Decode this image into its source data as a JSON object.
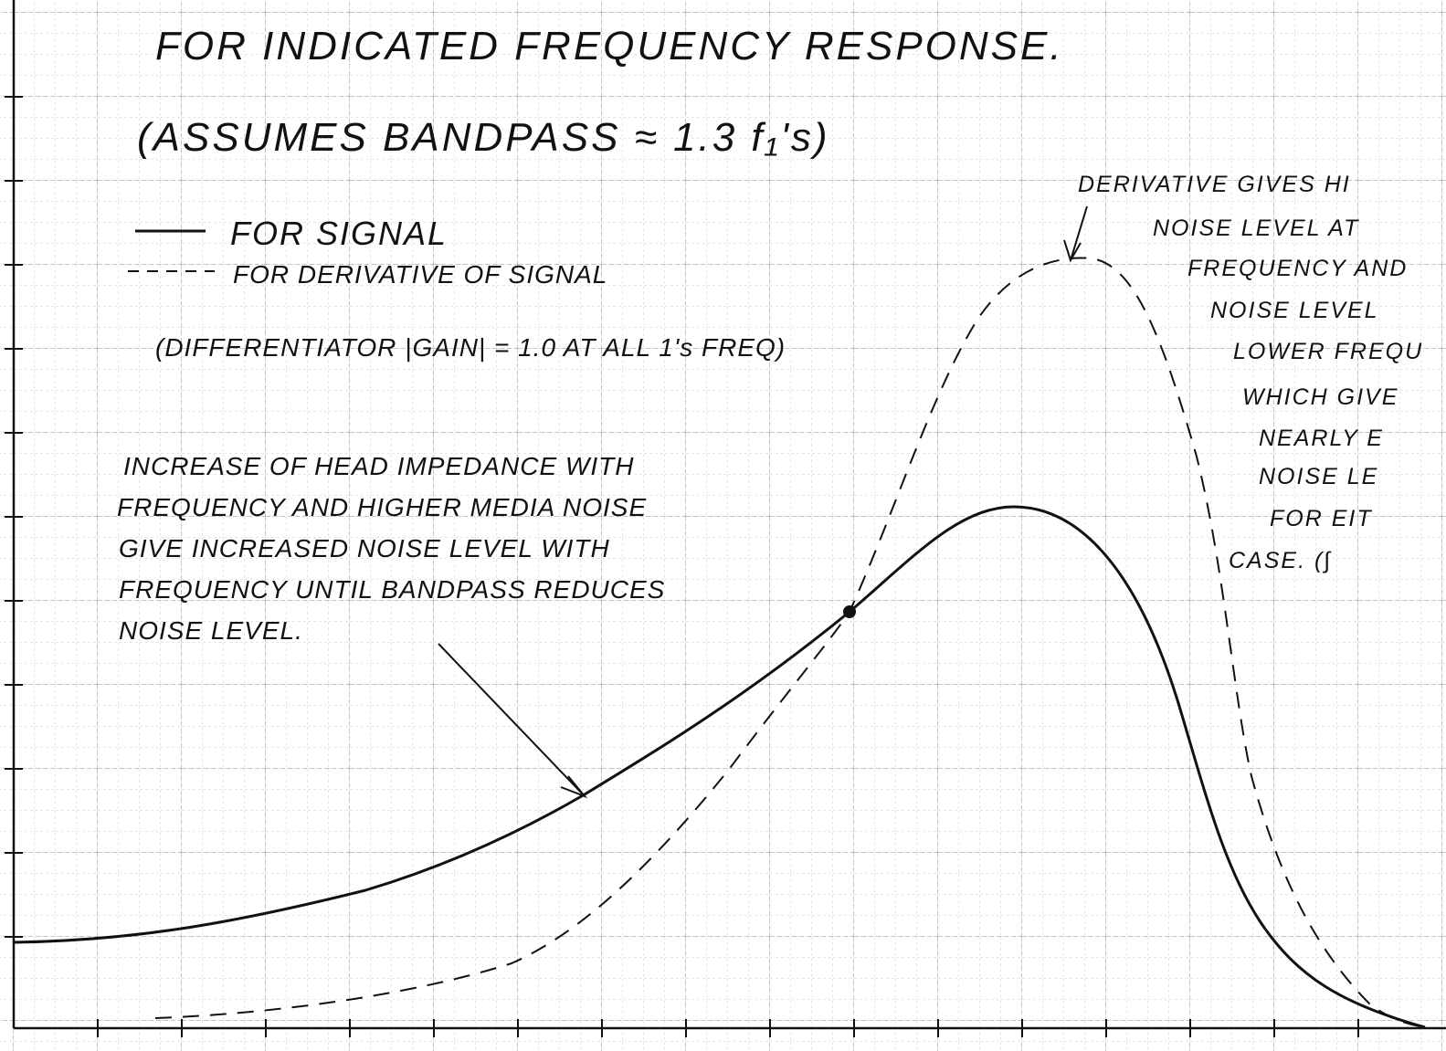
{
  "header": {
    "title": "FOR INDICATED FREQUENCY RESPONSE.",
    "subtitle": "(ASSUMES BANDPASS ≈ 1.3 f₁'s)"
  },
  "legend": [
    {
      "label": "FOR SIGNAL"
    },
    {
      "label": "FOR DERIVATIVE OF SIGNAL",
      "note": "(DIFFERENTIATOR |GAIN| = 1.0 AT ALL 1's FREQ)"
    }
  ],
  "annotations": {
    "left": [
      "INCREASE OF HEAD IMPEDANCE WITH",
      "FREQUENCY AND HIGHER MEDIA NOISE",
      "GIVE INCREASED NOISE LEVEL WITH",
      "FREQUENCY UNTIL BANDPASS REDUCES",
      "NOISE LEVEL."
    ],
    "right": [
      "DERIVATIVE GIVES HI",
      "NOISE LEVEL AT",
      "FREQUENCY AND",
      "NOISE LEVEL",
      "LOWER FREQU",
      "WHICH GIVE",
      "NEARLY E",
      "NOISE LE",
      "FOR EIT",
      "CASE. (∫"
    ]
  }
}
